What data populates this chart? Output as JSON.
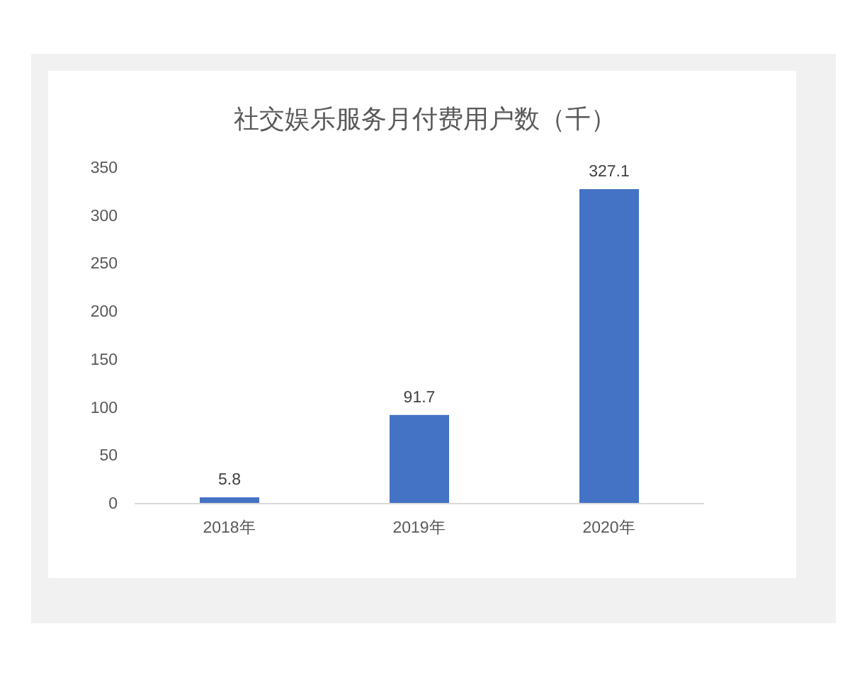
{
  "chart_data": {
    "type": "bar",
    "title": "社交娱乐服务月付费用户数（千）",
    "categories": [
      "2018年",
      "2019年",
      "2020年"
    ],
    "values": [
      5.8,
      91.7,
      327.1
    ],
    "color": "#4472c4",
    "ylim": [
      0,
      350
    ],
    "yticks": [
      0,
      50,
      100,
      150,
      200,
      250,
      300,
      350
    ],
    "data_labels": true
  }
}
